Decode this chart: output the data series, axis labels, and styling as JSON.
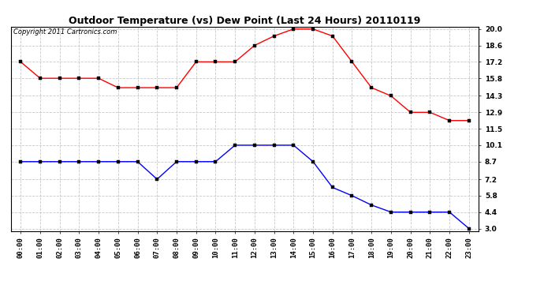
{
  "title": "Outdoor Temperature (vs) Dew Point (Last 24 Hours) 20110119",
  "copyright": "Copyright 2011 Cartronics.com",
  "hours": [
    "00:00",
    "01:00",
    "02:00",
    "03:00",
    "04:00",
    "05:00",
    "06:00",
    "07:00",
    "08:00",
    "09:00",
    "10:00",
    "11:00",
    "12:00",
    "13:00",
    "14:00",
    "15:00",
    "16:00",
    "17:00",
    "18:00",
    "19:00",
    "20:00",
    "21:00",
    "22:00",
    "23:00"
  ],
  "temp": [
    17.2,
    15.8,
    15.8,
    15.8,
    15.8,
    15.0,
    15.0,
    15.0,
    15.0,
    17.2,
    17.2,
    17.2,
    18.6,
    19.4,
    20.0,
    20.0,
    19.4,
    17.2,
    15.0,
    14.3,
    12.9,
    12.9,
    12.2,
    12.2
  ],
  "dew": [
    8.7,
    8.7,
    8.7,
    8.7,
    8.7,
    8.7,
    8.7,
    7.2,
    8.7,
    8.7,
    8.7,
    10.1,
    10.1,
    10.1,
    10.1,
    8.7,
    6.5,
    5.8,
    5.0,
    4.4,
    4.4,
    4.4,
    4.4,
    3.0
  ],
  "temp_color": "red",
  "dew_color": "blue",
  "ylim_min": 3.0,
  "ylim_max": 20.0,
  "yticks": [
    3.0,
    4.4,
    5.8,
    7.2,
    8.7,
    10.1,
    11.5,
    12.9,
    14.3,
    15.8,
    17.2,
    18.6,
    20.0
  ],
  "bg_color": "#ffffff",
  "grid_color": "#c8c8c8",
  "title_fontsize": 9,
  "copyright_fontsize": 6,
  "tick_fontsize": 6.5,
  "marker_size": 2.5,
  "line_width": 1.0
}
